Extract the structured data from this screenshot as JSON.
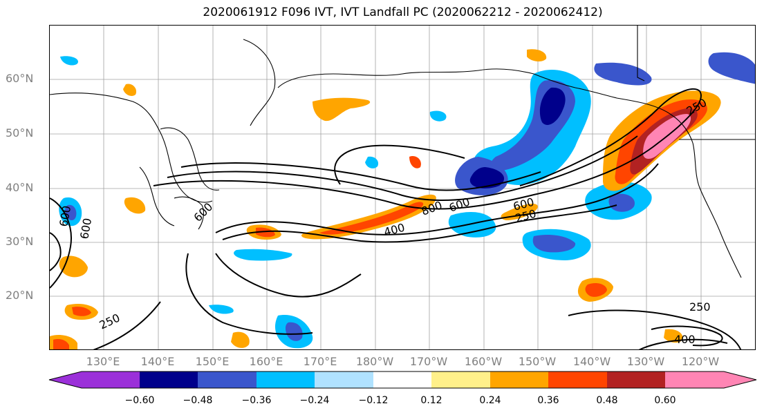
{
  "title": "2020061912 F096 IVT, IVT Landfall PC (2020062212 - 2020062412)",
  "lat_labels": [
    "60°N",
    "50°N",
    "40°N",
    "30°N",
    "20°N"
  ],
  "lon_labels": [
    "130°E",
    "140°E",
    "150°E",
    "160°E",
    "170°E",
    "180°W",
    "170°W",
    "160°W",
    "150°W",
    "140°W",
    "130°W",
    "120°W"
  ],
  "colorbar": {
    "ticks": [
      "−0.60",
      "−0.48",
      "−0.36",
      "−0.24",
      "−0.12",
      "0.12",
      "0.24",
      "0.36",
      "0.48",
      "0.60"
    ],
    "colors": [
      "#9b30d9",
      "#00008b",
      "#3a56cc",
      "#00bfff",
      "#b0e2ff",
      "#ffffff",
      "#fff08a",
      "#ffa500",
      "#ff4500",
      "#b22222",
      "#ff85b4"
    ]
  },
  "contour_labels": [
    "600",
    "600",
    "600",
    "400",
    "800",
    "600",
    "600",
    "250",
    "250",
    "250",
    "250",
    "400"
  ]
}
